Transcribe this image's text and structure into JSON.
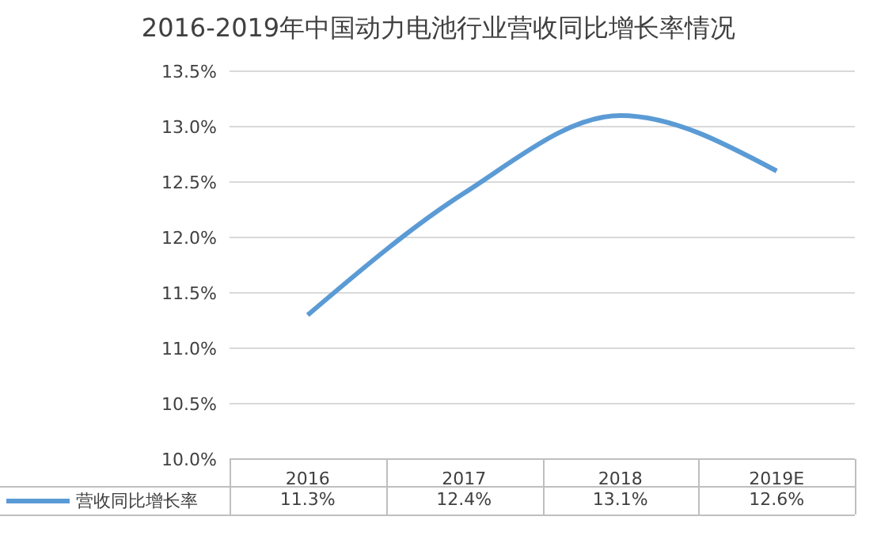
{
  "chart_data": {
    "type": "line",
    "title": "2016-2019年中国动力电池行业营收同比增长率情况",
    "categories": [
      "2016",
      "2017",
      "2018",
      "2019E"
    ],
    "series": [
      {
        "name": "营收同比增长率",
        "color": "#5b9bd5",
        "values": [
          11.3,
          12.4,
          13.1,
          12.6
        ]
      }
    ],
    "ylim": [
      10.0,
      13.5
    ],
    "yticks": [
      {
        "value": 10.0,
        "label": "10.0%"
      },
      {
        "value": 10.5,
        "label": "10.5%"
      },
      {
        "value": 11.0,
        "label": "11.0%"
      },
      {
        "value": 11.5,
        "label": "11.5%"
      },
      {
        "value": 12.0,
        "label": "12.0%"
      },
      {
        "value": 12.5,
        "label": "12.5%"
      },
      {
        "value": 13.0,
        "label": "13.0%"
      },
      {
        "value": 13.5,
        "label": "13.5%"
      }
    ],
    "value_labels": [
      "11.3%",
      "12.4%",
      "13.1%",
      "12.6%"
    ],
    "grid": "y",
    "legend": "bottom left",
    "marker": "none",
    "line_style": "solid"
  }
}
